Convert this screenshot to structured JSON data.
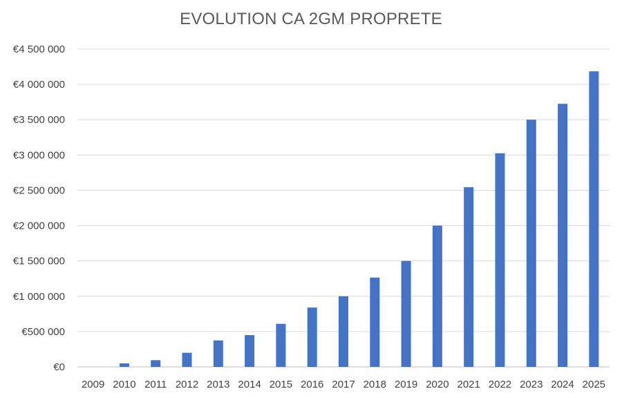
{
  "chart_data": {
    "type": "bar",
    "title": "EVOLUTION CA 2GM PROPRETE",
    "xlabel": "",
    "ylabel": "",
    "categories": [
      "2009",
      "2010",
      "2011",
      "2012",
      "2013",
      "2014",
      "2015",
      "2016",
      "2017",
      "2018",
      "2019",
      "2020",
      "2021",
      "2022",
      "2023",
      "2024",
      "2025"
    ],
    "values": [
      0,
      50000,
      95000,
      200000,
      375000,
      450000,
      610000,
      840000,
      1000000,
      1265000,
      1500000,
      2000000,
      2545000,
      3025000,
      3500000,
      3725000,
      4185000
    ],
    "ylim": [
      0,
      4500000
    ],
    "yticks": [
      0,
      500000,
      1000000,
      1500000,
      2000000,
      2500000,
      3000000,
      3500000,
      4000000,
      4500000
    ],
    "ytick_labels": [
      "€0",
      "€500 000",
      "€1 000 000",
      "€1 500 000",
      "€2 000 000",
      "€2 500 000",
      "€3 000 000",
      "€3 500 000",
      "€4 000 000",
      "€4 500 000"
    ],
    "grid": true,
    "legend": "none",
    "bar_color": "#4472c4"
  }
}
